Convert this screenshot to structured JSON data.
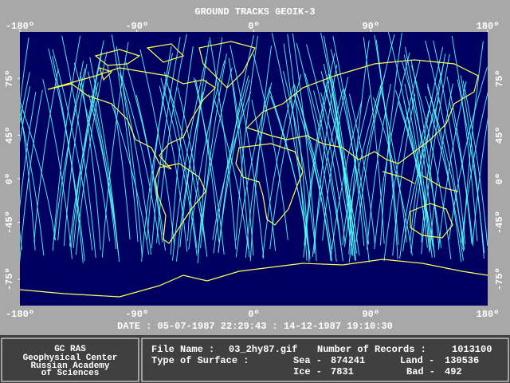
{
  "title": "GROUND TRACKS GEOIK-3",
  "map": {
    "x_ticks": [
      {
        "value": -180,
        "label": "-180º"
      },
      {
        "value": -90,
        "label": "-90º"
      },
      {
        "value": 0,
        "label": "0º"
      },
      {
        "value": 90,
        "label": "90º"
      },
      {
        "value": 180,
        "label": "180º"
      }
    ],
    "y_ticks": [
      {
        "value": 75,
        "label": "75º"
      },
      {
        "value": 45,
        "label": "45º"
      },
      {
        "value": 0,
        "label": "0º"
      },
      {
        "value": -45,
        "label": "-45º"
      },
      {
        "value": -75,
        "label": "-75º"
      }
    ]
  },
  "date_line": "DATE : 05-07-1987 22:29:43 : 14-12-1987 19:10:30",
  "footer": {
    "org": [
      "GC RAS",
      "Geophysical Center",
      "Russian Academy",
      "of Sciences"
    ],
    "file_name_label": "File Name :",
    "file_name": "03_2hy87.gif",
    "records_label": "Number of Records :",
    "records": 1013100,
    "surface_label": "Type of Surface :",
    "sea_label": "Sea -",
    "sea": 874241,
    "land_label": "Land -",
    "land": 130536,
    "ice_label": "Ice -",
    "ice": 7831,
    "bad_label": "Bad -",
    "bad": 492
  }
}
